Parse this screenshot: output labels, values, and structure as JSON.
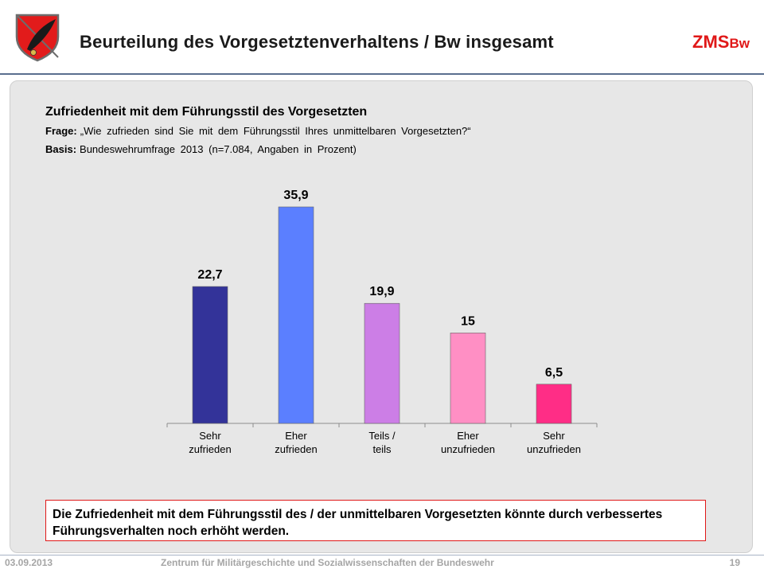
{
  "header": {
    "title": "Beurteilung des Vorgesetztenverhaltens / Bw insgesamt",
    "brand": "ZMS",
    "brand_sub": "Bw"
  },
  "chart_header": {
    "title": "Zufriedenheit mit dem Führungsstil des Vorgesetzten",
    "question_label": "Frage:",
    "question_text": "„Wie zufrieden sind Sie mit dem Führungsstil Ihres unmittelbaren Vorgesetzten?“",
    "basis_label": "Basis:",
    "basis_text": "Bundeswehrumfrage 2013 (n=7.084, Angaben in Prozent)"
  },
  "chart_data": {
    "type": "bar",
    "categories": [
      "Sehr zufrieden",
      "Eher zufrieden",
      "Teils / teils",
      "Eher unzufrieden",
      "Sehr unzufrieden"
    ],
    "category_lines": [
      [
        "Sehr",
        "zufrieden"
      ],
      [
        "Eher",
        "zufrieden"
      ],
      [
        "Teils /",
        "teils"
      ],
      [
        "Eher",
        "unzufrieden"
      ],
      [
        "Sehr",
        "unzufrieden"
      ]
    ],
    "values": [
      22.7,
      35.9,
      19.9,
      15,
      6.5
    ],
    "value_labels": [
      "22,7",
      "35,9",
      "19,9",
      "15",
      "6,5"
    ],
    "colors": [
      "#333399",
      "#5b7fff",
      "#cc7ee6",
      "#ff8fc4",
      "#ff2d86"
    ],
    "title": "",
    "xlabel": "",
    "ylabel": "",
    "ylim": [
      0,
      40
    ],
    "grid": false,
    "legend": "none"
  },
  "note": {
    "text": "Die Zufriedenheit mit dem Führungsstil des / der unmittelbaren Vorgesetzten könnte durch verbessertes Führungsverhalten noch erhöht werden."
  },
  "footer": {
    "date": "03.09.2013",
    "org": "Zentrum für Militärgeschichte und Sozialwissenschaften der Bundeswehr",
    "page": "19"
  }
}
